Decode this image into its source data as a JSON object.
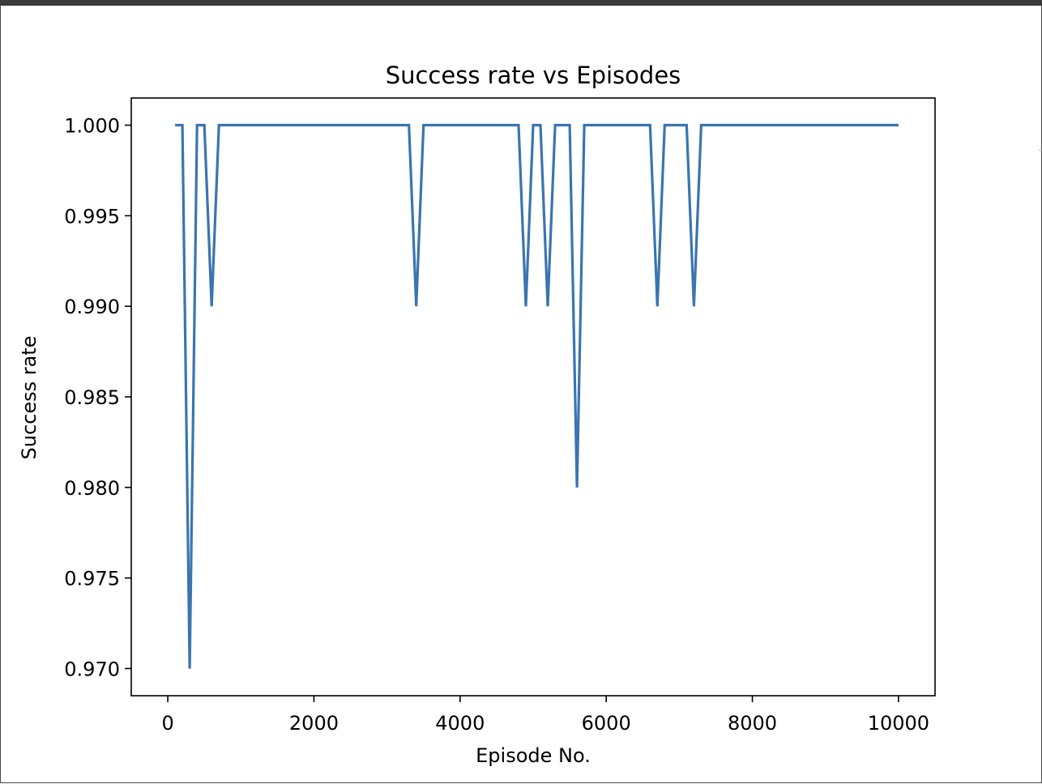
{
  "chart_data": {
    "type": "line",
    "title": "Success rate vs Episodes",
    "xlabel": "Episode No.",
    "ylabel": "Success rate",
    "xlim": [
      -500,
      10500
    ],
    "ylim": [
      0.9685,
      1.0015
    ],
    "xticks": [
      0,
      2000,
      4000,
      6000,
      8000,
      10000
    ],
    "xtick_labels": [
      "0",
      "2000",
      "4000",
      "6000",
      "8000",
      "10000"
    ],
    "yticks": [
      0.97,
      0.975,
      0.98,
      0.985,
      0.99,
      0.995,
      1.0
    ],
    "ytick_labels": [
      "0.970",
      "0.975",
      "0.980",
      "0.985",
      "0.990",
      "0.995",
      "1.000"
    ],
    "grid": false,
    "legend": "none",
    "line_color": "#3a75af",
    "series": [
      {
        "x": [
          100,
          200,
          300,
          400,
          500,
          600,
          700,
          800,
          3300,
          3400,
          3500,
          3600,
          4800,
          4900,
          5000,
          5100,
          5200,
          5300,
          5400,
          5500,
          5600,
          5700,
          5800,
          6600,
          6700,
          6800,
          6900,
          7100,
          7200,
          7300,
          7400,
          10000
        ],
        "y": [
          1.0,
          1.0,
          0.97,
          1.0,
          1.0,
          0.99,
          1.0,
          1.0,
          1.0,
          0.99,
          1.0,
          1.0,
          1.0,
          0.99,
          1.0,
          1.0,
          0.99,
          1.0,
          1.0,
          1.0,
          0.98,
          1.0,
          1.0,
          1.0,
          0.99,
          1.0,
          1.0,
          1.0,
          0.99,
          1.0,
          1.0,
          1.0
        ]
      }
    ]
  }
}
